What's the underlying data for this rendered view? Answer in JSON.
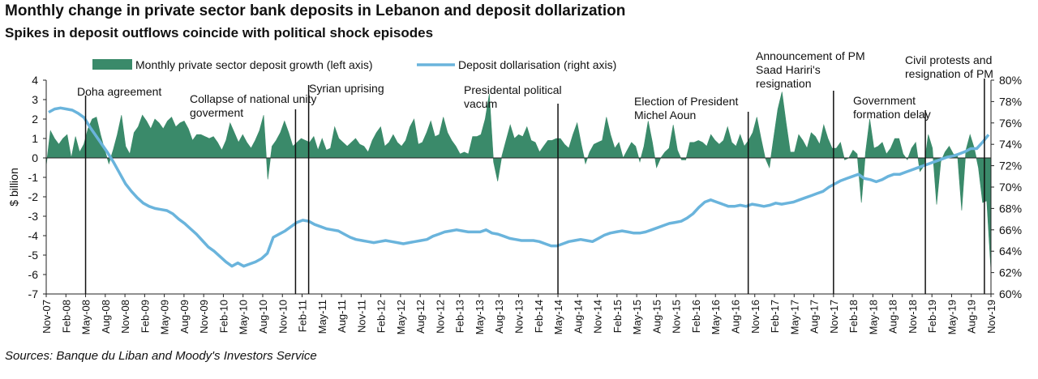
{
  "chart_data": {
    "type": "area+line",
    "title": "Monthly change in private sector bank deposits in Lebanon and deposit dollarization",
    "subtitle": "Spikes in deposit outflows coincide with political shock episodes",
    "source": "Sources: Banque du Liban and Moody's Investors Service",
    "ylabel_left": "$ billion",
    "ylim_left": [
      -7,
      4
    ],
    "yticks_left": [
      "4",
      "3",
      "2",
      "1",
      "0",
      "-1",
      "-2",
      "-3",
      "-4",
      "-5",
      "-6",
      "-7"
    ],
    "ylim_right": [
      60,
      80
    ],
    "yticks_right": [
      "80%",
      "78%",
      "76%",
      "74%",
      "72%",
      "70%",
      "68%",
      "66%",
      "64%",
      "62%",
      "60%"
    ],
    "x_start": "Nov-07",
    "x_end": "Nov-19",
    "xticks": [
      "Nov-07",
      "Feb-08",
      "May-08",
      "Aug-08",
      "Nov-08",
      "Feb-09",
      "May-09",
      "Aug-09",
      "Nov-09",
      "Feb-10",
      "May-10",
      "Aug-10",
      "Nov-10",
      "Feb-11",
      "May-11",
      "Aug-11",
      "Nov-11",
      "Feb-12",
      "May-12",
      "Aug-12",
      "Nov-12",
      "Feb-13",
      "May-13",
      "Aug-13",
      "Nov-13",
      "Feb-14",
      "May-14",
      "Aug-14",
      "Nov-14",
      "Feb-15",
      "May-15",
      "Aug-15",
      "Nov-15",
      "Feb-16",
      "May-16",
      "Aug-16",
      "Nov-16",
      "Feb-17",
      "May-17",
      "Aug-17",
      "Nov-17",
      "Feb-18",
      "May-18",
      "Aug-18",
      "Nov-18",
      "Feb-19",
      "May-19",
      "Aug-19",
      "Nov-19"
    ],
    "legend_position": "top",
    "grid": false,
    "colors": {
      "deposit_growth": "#3a8a6a",
      "dollarisation": "#6ab4dc"
    },
    "series": [
      {
        "name": "Monthly private sector deposit growth (left axis)",
        "axis": "left",
        "type": "area",
        "values": [
          -0.4,
          1.4,
          1.0,
          0.7,
          1.0,
          1.2,
          0.0,
          1.1,
          0.3,
          0.7,
          1.5,
          2.0,
          2.1,
          1.2,
          0.4,
          -0.3,
          0.4,
          1.2,
          2.2,
          0.6,
          0.2,
          1.3,
          1.6,
          2.2,
          1.9,
          1.5,
          2.0,
          1.8,
          1.5,
          1.9,
          2.1,
          1.6,
          1.8,
          1.9,
          1.5,
          0.9,
          1.2,
          1.2,
          1.1,
          1.0,
          1.1,
          0.8,
          0.4,
          0.9,
          1.8,
          1.3,
          0.8,
          1.2,
          0.8,
          0.5,
          0.9,
          1.4,
          2.2,
          -1.1,
          0.6,
          0.9,
          1.3,
          1.9,
          1.3,
          0.6,
          0.8,
          1.0,
          0.9,
          0.8,
          1.1,
          0.4,
          1.0,
          0.4,
          0.5,
          1.6,
          1.0,
          0.8,
          0.6,
          0.8,
          1.0,
          0.7,
          0.6,
          0.3,
          0.9,
          1.3,
          1.6,
          0.6,
          0.8,
          1.2,
          0.8,
          0.6,
          0.9,
          1.6,
          2.0,
          0.7,
          0.8,
          1.3,
          1.9,
          1.1,
          1.2,
          2.1,
          1.3,
          0.9,
          0.6,
          0.2,
          0.3,
          0.2,
          1.1,
          1.1,
          1.2,
          2.0,
          3.3,
          -0.2,
          -1.2,
          0.1,
          0.9,
          1.7,
          1.0,
          1.2,
          1.1,
          1.6,
          0.9,
          0.8,
          0.3,
          0.6,
          0.9,
          0.9,
          1.0,
          1.0,
          0.7,
          0.5,
          1.2,
          1.8,
          0.7,
          -0.3,
          0.3,
          0.7,
          0.8,
          0.9,
          2.1,
          1.2,
          0.5,
          0.8,
          0.0,
          0.4,
          0.8,
          0.6,
          -0.2,
          0.6,
          1.9,
          0.8,
          -0.5,
          0.0,
          0.3,
          0.5,
          1.7,
          0.4,
          -0.1,
          -0.1,
          0.8,
          0.8,
          0.9,
          0.8,
          0.6,
          1.2,
          0.9,
          0.7,
          0.9,
          1.6,
          0.8,
          0.6,
          1.2,
          0.6,
          0.9,
          1.3,
          2.1,
          1.0,
          0.0,
          -0.5,
          1.0,
          2.5,
          3.4,
          1.8,
          0.3,
          0.3,
          1.2,
          0.9,
          0.5,
          1.3,
          1.1,
          0.7,
          1.7,
          1.0,
          0.5,
          0.5,
          0.8,
          -0.1,
          0.0,
          0.4,
          0.2,
          -2.3,
          0.3,
          2.0,
          0.5,
          0.6,
          0.8,
          0.2,
          0.5,
          1.0,
          1.0,
          0.2,
          -0.1,
          0.5,
          0.8,
          -0.7,
          -0.4,
          1.2,
          0.5,
          -2.4,
          -0.2,
          0.3,
          0.6,
          0.2,
          0.1,
          -2.7,
          0.4,
          1.2,
          0.5,
          -0.5,
          -2.3,
          -2.2,
          -5.8
        ]
      },
      {
        "name": "Deposit dollarisation (right axis)",
        "axis": "right",
        "type": "line",
        "values": [
          77.0,
          77.3,
          77.4,
          77.3,
          77.2,
          76.9,
          76.5,
          75.6,
          74.8,
          74.0,
          73.2,
          72.3,
          71.3,
          70.3,
          69.6,
          69.0,
          68.5,
          68.2,
          68.0,
          67.9,
          67.8,
          67.5,
          67.0,
          66.6,
          66.1,
          65.6,
          65.0,
          64.4,
          64.0,
          63.5,
          63.0,
          62.6,
          62.9,
          62.6,
          62.8,
          63.0,
          63.3,
          63.8,
          65.3,
          65.6,
          65.9,
          66.3,
          66.7,
          66.9,
          66.8,
          66.5,
          66.3,
          66.1,
          66.0,
          65.9,
          65.6,
          65.3,
          65.1,
          65.0,
          64.9,
          64.8,
          64.9,
          65.0,
          64.9,
          64.8,
          64.7,
          64.8,
          64.9,
          65.0,
          65.1,
          65.4,
          65.6,
          65.8,
          65.9,
          66.0,
          65.9,
          65.8,
          65.8,
          65.8,
          66.0,
          65.7,
          65.6,
          65.4,
          65.2,
          65.1,
          65.0,
          65.0,
          65.0,
          64.9,
          64.7,
          64.5,
          64.5,
          64.7,
          64.9,
          65.0,
          65.1,
          65.0,
          64.9,
          65.2,
          65.5,
          65.7,
          65.8,
          65.9,
          65.8,
          65.7,
          65.7,
          65.8,
          66.0,
          66.2,
          66.4,
          66.6,
          66.7,
          66.8,
          67.1,
          67.5,
          68.1,
          68.6,
          68.8,
          68.6,
          68.4,
          68.2,
          68.2,
          68.3,
          68.2,
          68.4,
          68.3,
          68.2,
          68.3,
          68.5,
          68.4,
          68.5,
          68.6,
          68.8,
          69.0,
          69.2,
          69.4,
          69.6,
          70.0,
          70.3,
          70.6,
          70.8,
          71.0,
          71.2,
          70.8,
          70.7,
          70.5,
          70.7,
          71.0,
          71.2,
          71.2,
          71.4,
          71.6,
          71.8,
          72.0,
          72.2,
          72.4,
          72.6,
          72.8,
          72.9,
          73.1,
          73.3,
          73.6,
          73.6,
          74.2,
          74.9
        ],
        "note": "line values sampled along the plotted period"
      }
    ],
    "annotations": [
      {
        "label": "Doha agreement",
        "at": "May-08"
      },
      {
        "label": "Collapse of national unity goverment",
        "at": "Jan-11"
      },
      {
        "label": "Syrian uprising",
        "at": "Mar-11"
      },
      {
        "label": "Presidental political vacum",
        "at": "May-14"
      },
      {
        "label": "Election of President Michel Aoun",
        "at": "Oct-16"
      },
      {
        "label": "Announcement of PM Saad Hariri's resignation",
        "at": "Nov-17"
      },
      {
        "label": "Government formation delay",
        "at": "Jan-19"
      },
      {
        "label": "Civil protests and resignation of PM",
        "at": "Oct-19"
      }
    ]
  }
}
